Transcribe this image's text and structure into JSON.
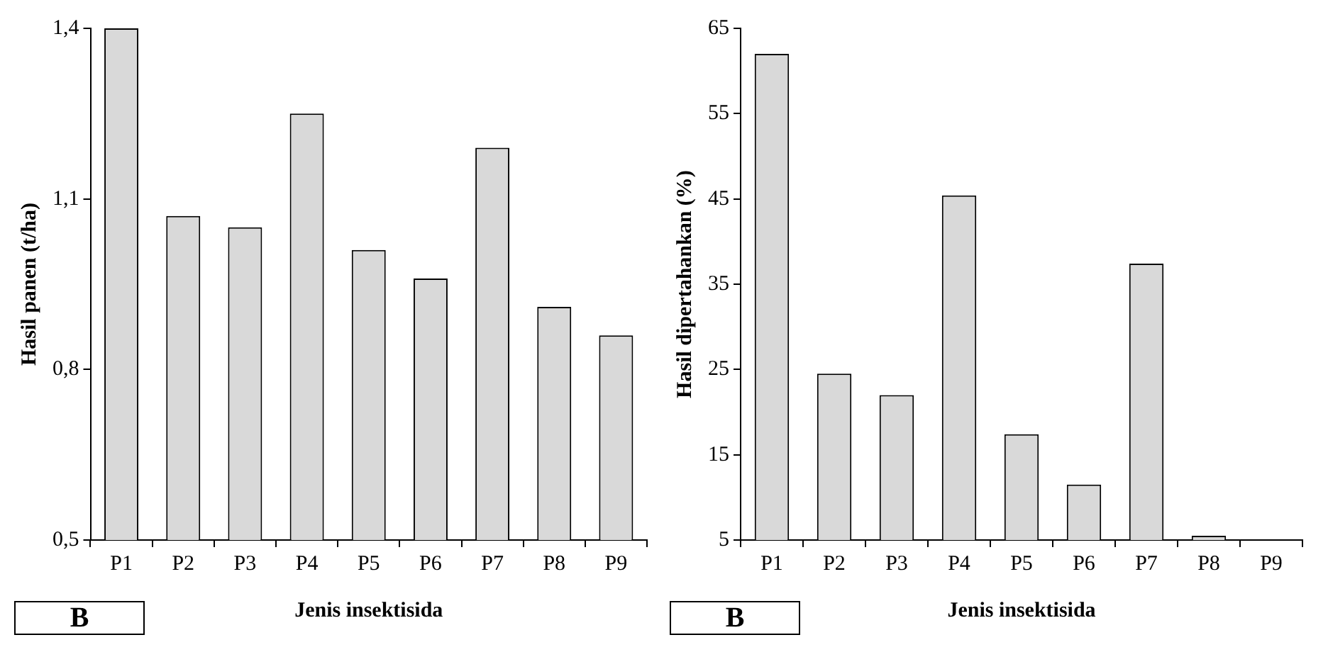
{
  "chart_data": [
    {
      "type": "bar",
      "categories": [
        "P1",
        "P2",
        "P3",
        "P4",
        "P5",
        "P6",
        "P7",
        "P8",
        "P9"
      ],
      "values": [
        1.4,
        1.07,
        1.05,
        1.25,
        1.01,
        0.96,
        1.19,
        0.91,
        0.86
      ],
      "color": "#d9d9d9",
      "ylim": [
        0.5,
        1.4
      ],
      "yticks": [
        {
          "value": 0.5,
          "label": "0,5"
        },
        {
          "value": 0.8,
          "label": "0,8"
        },
        {
          "value": 1.1,
          "label": "1,1"
        },
        {
          "value": 1.4,
          "label": "1,4"
        }
      ],
      "grid": false,
      "xlabel": "Jenis insektisida",
      "ylabel": "Hasil panen (t/ha)",
      "annotations": [
        "B"
      ]
    },
    {
      "type": "bar",
      "categories": [
        "P1",
        "P2",
        "P3",
        "P4",
        "P5",
        "P6",
        "P7",
        "P8",
        "P9"
      ],
      "values": [
        62,
        24.5,
        22,
        45.4,
        17.4,
        11.5,
        37.4,
        5.5,
        null
      ],
      "color": "#d9d9d9",
      "ylim": [
        5,
        65
      ],
      "yticks": [
        5,
        15,
        25,
        35,
        45,
        55,
        65
      ],
      "grid": false,
      "xlabel": "Jenis insektisida",
      "ylabel": "Hasil dipertahankan (%)",
      "annotations": [
        "B"
      ]
    }
  ]
}
